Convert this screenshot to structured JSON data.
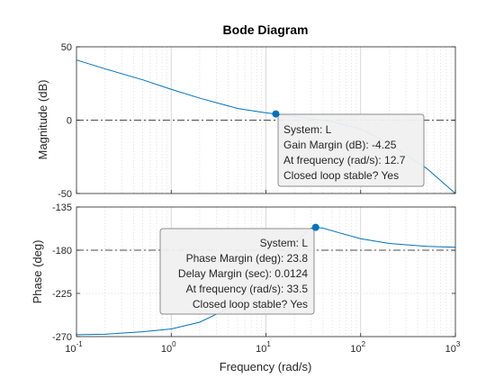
{
  "chart_data": {
    "type": "line",
    "title": "Bode Diagram",
    "xlabel": "Frequency  (rad/s)",
    "xscale": "log",
    "xlim": [
      0.1,
      1000
    ],
    "grid": true,
    "line_color": "#0072bd",
    "x_ticks": [
      {
        "base": "10",
        "exp": "-1"
      },
      {
        "base": "10",
        "exp": "0"
      },
      {
        "base": "10",
        "exp": "1"
      },
      {
        "base": "10",
        "exp": "2"
      },
      {
        "base": "10",
        "exp": "3"
      }
    ],
    "magnitude": {
      "ylabel": "Magnitude (dB)",
      "ylim": [
        -50,
        50
      ],
      "yticks": [
        "50",
        "0",
        "-50"
      ],
      "reference_line": 0,
      "series": {
        "x": [
          0.1,
          0.2,
          0.5,
          1,
          2,
          5,
          10,
          12.7,
          20,
          50,
          100,
          200,
          500,
          1000
        ],
        "y": [
          41,
          35,
          27.5,
          21,
          15,
          8,
          5,
          4.2,
          2.5,
          -1,
          -6,
          -16,
          -33,
          -50
        ]
      },
      "tooltip": {
        "x": 12.7,
        "y": 4.25,
        "lines": [
          "System: L",
          "Gain Margin (dB): -4.25",
          "At frequency (rad/s): 12.7",
          "Closed loop stable? Yes"
        ]
      }
    },
    "phase": {
      "ylabel": "Phase (deg)",
      "ylim": [
        -270,
        -135
      ],
      "yticks": [
        "-135",
        "-180",
        "-225",
        "-270"
      ],
      "reference_line": -180,
      "series": {
        "x": [
          0.1,
          0.2,
          0.5,
          1,
          2,
          5,
          10,
          20,
          30,
          33.5,
          40,
          60,
          100,
          200,
          500,
          1000
        ],
        "y": [
          -268,
          -267.5,
          -265,
          -262,
          -255,
          -236,
          -210,
          -172,
          -157,
          -156.2,
          -157,
          -162,
          -168,
          -173,
          -176,
          -177
        ]
      },
      "tooltip": {
        "x": 33.5,
        "y": -156.2,
        "lines": [
          "System: L",
          "Phase Margin (deg): 23.8",
          "Delay Margin (sec): 0.0124",
          "At frequency (rad/s): 33.5",
          "Closed loop stable? Yes"
        ]
      }
    }
  }
}
